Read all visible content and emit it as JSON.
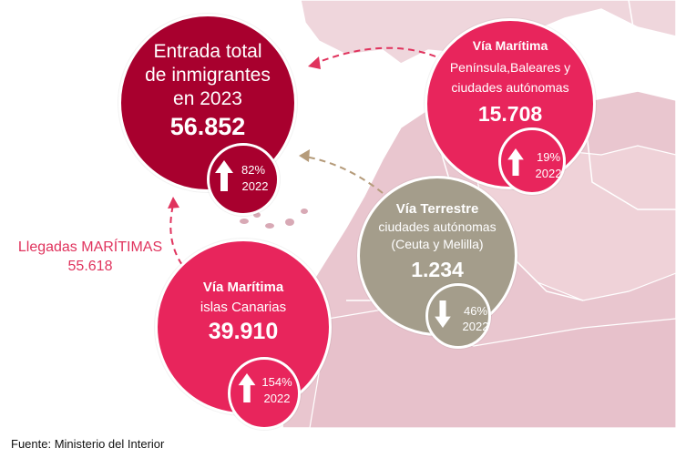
{
  "main": {
    "title_line1": "Entrada total",
    "title_line2": "de inmigrantes",
    "title_line3": "en 2023",
    "value": "56.852",
    "change_pct": "82%",
    "change_year": "2022",
    "change_direction": "up",
    "color": "#a8002e"
  },
  "peninsula": {
    "title": "Vía Marítima",
    "line2": "Península,Baleares y",
    "line3": "ciudades autónomas",
    "value": "15.708",
    "change_pct": "19%",
    "change_year": "2022",
    "change_direction": "up",
    "color": "#e8255c"
  },
  "canarias": {
    "title": "Vía Marítima",
    "line2": "islas Canarias",
    "value": "39.910",
    "change_pct": "154%",
    "change_year": "2022",
    "change_direction": "up",
    "color": "#e8255c"
  },
  "terrestre": {
    "title": "Vía Terrestre",
    "line2": "ciudades autónomas",
    "line3": "(Ceuta y Melilla)",
    "value": "1.234",
    "change_pct": "46%",
    "change_year": "2022",
    "change_direction": "down",
    "color": "#a49d8b"
  },
  "maritimas": {
    "label": "Llegadas MARÍTIMAS",
    "value": "55.618",
    "color": "#e0335d"
  },
  "footer": {
    "source": "Fuente: Ministerio del Interior"
  }
}
